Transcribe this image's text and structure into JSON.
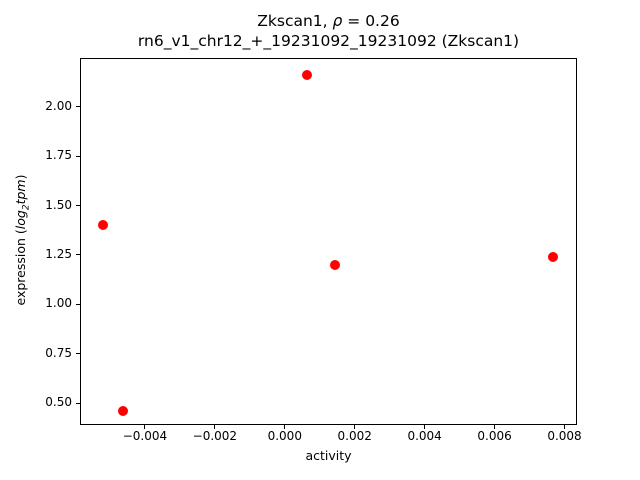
{
  "title": {
    "line1_prefix": "Zkscan1, ",
    "rho_symbol": "ρ",
    "line1_suffix": " = 0.26",
    "line2": "rn6_v1_chr12_+_19231092_19231092 (Zkscan1)"
  },
  "axes": {
    "xlabel": "activity",
    "ylabel_prefix": "expression (",
    "ylabel_log": "log",
    "ylabel_sub": "2",
    "ylabel_var": "tpm",
    "ylabel_suffix": ")"
  },
  "chart_data": {
    "type": "scatter",
    "title": "Zkscan1, ρ = 0.26",
    "subtitle": "rn6_v1_chr12_+_19231092_19231092 (Zkscan1)",
    "xlabel": "activity",
    "ylabel": "expression (log2 tpm)",
    "marker_color": "#ff0000",
    "marker_size_px": 10,
    "grid": false,
    "legend": null,
    "xlim": [
      -0.005857,
      0.008357
    ],
    "ylim": [
      0.39,
      2.246
    ],
    "points": [
      {
        "x": -0.00521,
        "y": 1.4
      },
      {
        "x": -0.00464,
        "y": 0.46
      },
      {
        "x": 0.00064,
        "y": 2.16
      },
      {
        "x": 0.00143,
        "y": 1.2
      },
      {
        "x": 0.00766,
        "y": 1.24
      }
    ],
    "x_ticks": [
      {
        "value": -0.004,
        "label": "−0.004"
      },
      {
        "value": -0.002,
        "label": "−0.002"
      },
      {
        "value": 0.0,
        "label": "0.000"
      },
      {
        "value": 0.002,
        "label": "0.002"
      },
      {
        "value": 0.004,
        "label": "0.004"
      },
      {
        "value": 0.006,
        "label": "0.006"
      },
      {
        "value": 0.008,
        "label": "0.008"
      }
    ],
    "y_ticks": [
      {
        "value": 0.5,
        "label": "0.50"
      },
      {
        "value": 0.75,
        "label": "0.75"
      },
      {
        "value": 1.0,
        "label": "1.00"
      },
      {
        "value": 1.25,
        "label": "1.25"
      },
      {
        "value": 1.5,
        "label": "1.50"
      },
      {
        "value": 1.75,
        "label": "1.75"
      },
      {
        "value": 2.0,
        "label": "2.00"
      }
    ]
  }
}
